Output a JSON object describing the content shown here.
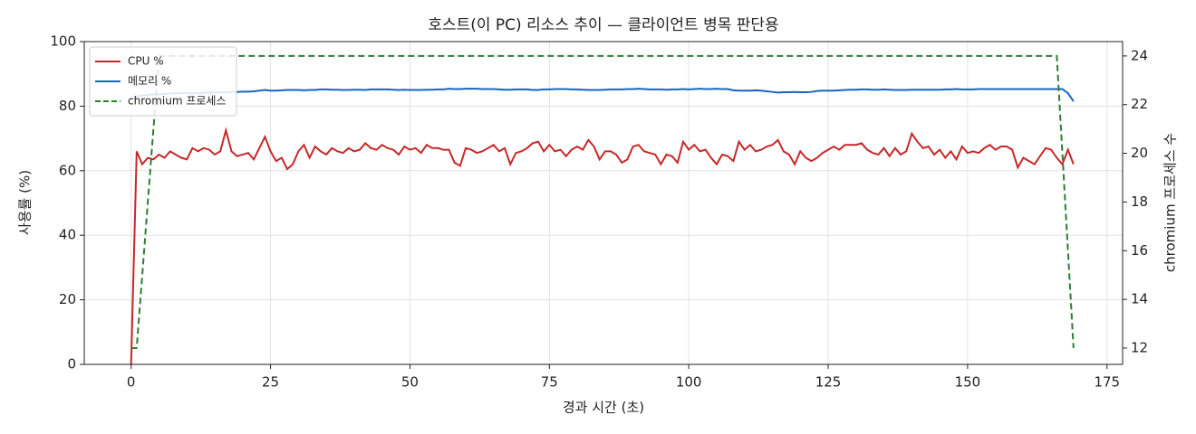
{
  "chart_data": {
    "type": "line",
    "title": "호스트(이 PC) 리소스 추이 — 클라이언트 병목 판단용",
    "x_label": "경과 시간 (초)",
    "y_label": "사용률 (%)",
    "y2_label": "chromium 프로세스 수",
    "x": [
      0,
      1,
      2,
      3,
      4,
      5,
      6,
      7,
      8,
      9,
      10,
      11,
      12,
      13,
      14,
      15,
      16,
      17,
      18,
      19,
      20,
      21,
      22,
      23,
      24,
      25,
      26,
      27,
      28,
      29,
      30,
      31,
      32,
      33,
      34,
      35,
      36,
      37,
      38,
      39,
      40,
      41,
      42,
      43,
      44,
      45,
      46,
      47,
      48,
      49,
      50,
      51,
      52,
      53,
      54,
      55,
      56,
      57,
      58,
      59,
      60,
      61,
      62,
      63,
      64,
      65,
      66,
      67,
      68,
      69,
      70,
      71,
      72,
      73,
      74,
      75,
      76,
      77,
      78,
      79,
      80,
      81,
      82,
      83,
      84,
      85,
      86,
      87,
      88,
      89,
      90,
      91,
      92,
      93,
      94,
      95,
      96,
      97,
      98,
      99,
      100,
      101,
      102,
      103,
      104,
      105,
      106,
      107,
      108,
      109,
      110,
      111,
      112,
      113,
      114,
      115,
      116,
      117,
      118,
      119,
      120,
      121,
      122,
      123,
      124,
      125,
      126,
      127,
      128,
      129,
      130,
      131,
      132,
      133,
      134,
      135,
      136,
      137,
      138,
      139,
      140,
      141,
      142,
      143,
      144,
      145,
      146,
      147,
      148,
      149,
      150,
      151,
      152,
      153,
      154,
      155,
      156,
      157,
      158,
      159,
      160,
      161,
      162,
      163,
      164,
      165,
      166,
      167,
      168,
      169
    ],
    "series": [
      {
        "name": "CPU %",
        "color": "#c62828",
        "style": "solid",
        "values": [
          0,
          66,
          62,
          64,
          63.5,
          65,
          64,
          66,
          65,
          64,
          63.5,
          67,
          66,
          67,
          66.5,
          65,
          66,
          72.5,
          66,
          64.5,
          65,
          65.5,
          63.5,
          67,
          70.5,
          66,
          63,
          64,
          60.5,
          62,
          66,
          68,
          64,
          67.5,
          66,
          65,
          67,
          66,
          65.5,
          67,
          66,
          66.5,
          68.5,
          67,
          66.5,
          68,
          67,
          66.5,
          65,
          67.5,
          66.5,
          67,
          65.5,
          68,
          67,
          67,
          66.5,
          66.5,
          62.5,
          61.5,
          67,
          66.5,
          65.5,
          66,
          67,
          68,
          66,
          67,
          62,
          65.5,
          66,
          67,
          68.5,
          69,
          66,
          68,
          66,
          66.5,
          64.5,
          66.5,
          67.5,
          66.5,
          69.5,
          67.5,
          63.5,
          66,
          66,
          65,
          62.5,
          63.5,
          67.5,
          68,
          66,
          65.5,
          65,
          62,
          65,
          64.5,
          62.5,
          69,
          66.5,
          68,
          66,
          66.5,
          64,
          62,
          65,
          64.5,
          63,
          69,
          66.5,
          68,
          66,
          66.5,
          67.5,
          68,
          69.5,
          66,
          65,
          62,
          66,
          64,
          63,
          64,
          65.5,
          66.5,
          67.5,
          66.5,
          68,
          68,
          68,
          68.5,
          66.5,
          65.5,
          65,
          67,
          64.5,
          67,
          65,
          66,
          71.5,
          69,
          67,
          67.5,
          65,
          66.5,
          64,
          66,
          63.5,
          67.5,
          65.5,
          66,
          65.5,
          67,
          68,
          66.5,
          67.5,
          67.5,
          66.5,
          61,
          64,
          63,
          62,
          64.5,
          67,
          66.5,
          64,
          62,
          66.5,
          62
        ]
      },
      {
        "name": "메모리 %",
        "color": "#1565c0",
        "style": "solid",
        "values": [
          82,
          83,
          83.3,
          83.5,
          83.6,
          83.7,
          83.8,
          83.9,
          84,
          84,
          84,
          84,
          84,
          84.1,
          84.2,
          84.2,
          84.3,
          84.3,
          84.4,
          84.4,
          84.5,
          84.5,
          84.6,
          84.8,
          85,
          84.8,
          84.8,
          84.9,
          85,
          85,
          85,
          84.9,
          85,
          85,
          85.2,
          85.2,
          85.1,
          85.1,
          85,
          85,
          85.1,
          85.1,
          85,
          85.2,
          85.2,
          85.2,
          85.2,
          85.1,
          85,
          85.1,
          85,
          85,
          85,
          85.1,
          85.1,
          85.2,
          85.2,
          85.4,
          85.3,
          85.3,
          85.4,
          85.4,
          85.4,
          85.3,
          85.3,
          85.3,
          85.2,
          85.1,
          85.1,
          85.2,
          85.2,
          85.2,
          85,
          85,
          85.2,
          85.2,
          85.3,
          85.3,
          85.3,
          85.2,
          85.2,
          85.1,
          85,
          85,
          85,
          85.1,
          85.2,
          85.2,
          85.2,
          85.3,
          85.3,
          85.4,
          85.3,
          85.2,
          85.2,
          85.2,
          85.1,
          85.2,
          85.2,
          85.3,
          85.2,
          85.3,
          85.4,
          85.3,
          85.3,
          85.4,
          85.3,
          85.3,
          84.9,
          84.8,
          84.8,
          84.8,
          84.9,
          84.8,
          84.6,
          84.4,
          84.2,
          84.3,
          84.3,
          84.4,
          84.3,
          84.3,
          84.4,
          84.7,
          84.8,
          84.8,
          84.8,
          84.9,
          85,
          85.1,
          85.1,
          85.2,
          85.2,
          85.1,
          85.1,
          85.2,
          85.1,
          85,
          85,
          85,
          85.1,
          85.1,
          85.1,
          85.1,
          85.1,
          85.1,
          85.2,
          85.2,
          85.3,
          85.2,
          85.2,
          85.2,
          85.3,
          85.3,
          85.3,
          85.3,
          85.3,
          85.3,
          85.3,
          85.3,
          85.3,
          85.3,
          85.3,
          85.3,
          85.3,
          85.3,
          85.3,
          85.3,
          84,
          81.5
        ]
      },
      {
        "name": "chromium 프로세스",
        "color": "#2e7d32",
        "style": "dashed",
        "axis": "y2",
        "values": [
          12,
          12,
          15,
          18,
          21,
          24,
          24,
          24,
          24,
          24,
          24,
          24,
          24,
          24,
          24,
          24,
          24,
          24,
          24,
          24,
          24,
          24,
          24,
          24,
          24,
          24,
          24,
          24,
          24,
          24,
          24,
          24,
          24,
          24,
          24,
          24,
          24,
          24,
          24,
          24,
          24,
          24,
          24,
          24,
          24,
          24,
          24,
          24,
          24,
          24,
          24,
          24,
          24,
          24,
          24,
          24,
          24,
          24,
          24,
          24,
          24,
          24,
          24,
          24,
          24,
          24,
          24,
          24,
          24,
          24,
          24,
          24,
          24,
          24,
          24,
          24,
          24,
          24,
          24,
          24,
          24,
          24,
          24,
          24,
          24,
          24,
          24,
          24,
          24,
          24,
          24,
          24,
          24,
          24,
          24,
          24,
          24,
          24,
          24,
          24,
          24,
          24,
          24,
          24,
          24,
          24,
          24,
          24,
          24,
          24,
          24,
          24,
          24,
          24,
          24,
          24,
          24,
          24,
          24,
          24,
          24,
          24,
          24,
          24,
          24,
          24,
          24,
          24,
          24,
          24,
          24,
          24,
          24,
          24,
          24,
          24,
          24,
          24,
          24,
          24,
          24,
          24,
          24,
          24,
          24,
          24,
          24,
          24,
          24,
          24,
          24,
          24,
          24,
          24,
          24,
          24,
          24,
          24,
          24,
          24,
          24,
          24,
          24,
          24,
          24,
          24,
          24,
          20,
          16,
          12
        ]
      }
    ],
    "xlim": [
      -8.4,
      177.8
    ],
    "xticks": [
      0,
      25,
      50,
      75,
      100,
      125,
      150,
      175
    ],
    "ylim": [
      0,
      100
    ],
    "yticks": [
      0,
      20,
      40,
      60,
      80,
      100
    ],
    "y2lim": [
      11.33,
      24.59
    ],
    "y2ticks": [
      12,
      14,
      16,
      18,
      20,
      22,
      24
    ],
    "grid": true,
    "legend": "upper left"
  }
}
